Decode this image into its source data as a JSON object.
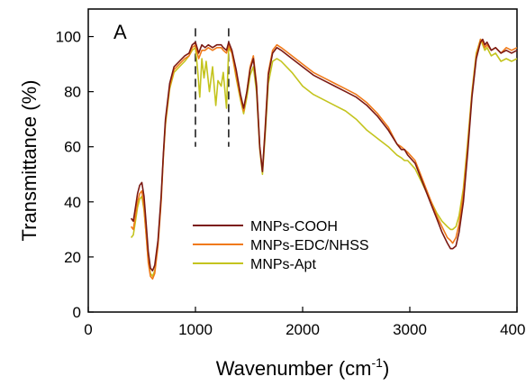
{
  "chart_data": {
    "type": "line",
    "panel_label": "A",
    "xlabel": "Wavenumber (cm",
    "xlabel_sup": "-1",
    "xlabel_end": ")",
    "ylabel": "Transmittance (%)",
    "xlim": [
      0,
      4000
    ],
    "ylim": [
      0,
      110
    ],
    "x_ticks": [
      0,
      1000,
      2000,
      3000,
      4000
    ],
    "y_ticks": [
      0,
      20,
      40,
      60,
      80,
      100
    ],
    "grid": false,
    "legend_position": "lower-left",
    "reference_lines": [
      {
        "x": 1000,
        "y_from": 60,
        "y_to": 103,
        "style": "dashed"
      },
      {
        "x": 1310,
        "y_from": 60,
        "y_to": 103,
        "style": "dashed"
      }
    ],
    "series": [
      {
        "name": "MNPs-COOH",
        "color": "#7b1a14",
        "x": [
          400,
          420,
          440,
          460,
          480,
          500,
          520,
          540,
          560,
          580,
          600,
          620,
          650,
          680,
          700,
          720,
          760,
          800,
          850,
          900,
          940,
          970,
          1000,
          1030,
          1060,
          1090,
          1120,
          1160,
          1200,
          1240,
          1260,
          1290,
          1310,
          1340,
          1380,
          1420,
          1450,
          1480,
          1510,
          1540,
          1570,
          1600,
          1625,
          1650,
          1680,
          1720,
          1760,
          1800,
          1900,
          2000,
          2100,
          2200,
          2300,
          2400,
          2500,
          2600,
          2700,
          2800,
          2880,
          2920,
          2950,
          2980,
          3050,
          3100,
          3150,
          3200,
          3250,
          3300,
          3350,
          3380,
          3400,
          3430,
          3460,
          3500,
          3540,
          3580,
          3620,
          3660,
          3680,
          3700,
          3720,
          3760,
          3800,
          3850,
          3900,
          3950,
          4000
        ],
        "values": [
          34,
          33,
          38,
          43,
          46,
          47,
          42,
          32,
          22,
          16,
          15,
          17,
          26,
          42,
          57,
          70,
          83,
          89,
          91,
          93,
          94,
          97,
          98,
          94,
          97,
          96,
          97,
          96,
          97,
          97,
          96,
          95,
          98,
          95,
          88,
          79,
          74,
          80,
          88,
          92,
          82,
          60,
          51,
          66,
          86,
          94,
          96,
          95,
          92,
          89,
          86,
          84,
          82,
          80,
          78,
          75,
          71,
          66,
          61,
          59,
          59,
          57,
          54,
          49,
          44,
          39,
          34,
          29,
          25,
          23,
          23,
          24,
          29,
          40,
          58,
          78,
          92,
          98,
          99,
          97,
          98,
          95,
          96,
          94,
          95,
          94,
          95
        ]
      },
      {
        "name": "MNPs-EDC/NHSS",
        "color": "#f07a1a",
        "x": [
          400,
          420,
          440,
          460,
          480,
          500,
          520,
          540,
          560,
          580,
          600,
          620,
          650,
          680,
          700,
          720,
          760,
          800,
          850,
          900,
          940,
          970,
          1000,
          1030,
          1060,
          1090,
          1120,
          1160,
          1200,
          1240,
          1260,
          1290,
          1310,
          1340,
          1380,
          1420,
          1450,
          1480,
          1510,
          1540,
          1570,
          1600,
          1625,
          1650,
          1680,
          1720,
          1760,
          1800,
          1900,
          2000,
          2100,
          2200,
          2300,
          2400,
          2500,
          2600,
          2700,
          2800,
          2880,
          2920,
          2950,
          2980,
          3050,
          3100,
          3150,
          3200,
          3250,
          3300,
          3350,
          3380,
          3400,
          3430,
          3460,
          3500,
          3540,
          3580,
          3620,
          3660,
          3680,
          3700,
          3720,
          3760,
          3800,
          3850,
          3900,
          3950,
          4000
        ],
        "values": [
          31,
          30,
          35,
          40,
          43,
          44,
          38,
          28,
          18,
          13,
          12,
          14,
          24,
          40,
          56,
          69,
          82,
          88,
          90,
          92,
          93,
          96,
          97,
          92,
          95,
          95,
          96,
          95,
          96,
          96,
          95,
          94,
          97,
          94,
          86,
          78,
          73,
          80,
          89,
          93,
          83,
          60,
          51,
          67,
          87,
          95,
          97,
          96,
          93,
          90,
          87,
          85,
          83,
          81,
          79,
          76,
          72,
          67,
          61,
          60,
          59,
          58,
          55,
          50,
          45,
          40,
          35,
          31,
          27,
          26,
          25,
          27,
          32,
          43,
          60,
          79,
          93,
          99,
          98,
          96,
          97,
          95,
          96,
          94,
          96,
          95,
          96
        ]
      },
      {
        "name": "MNPs-Apt",
        "color": "#c4c41e",
        "x": [
          400,
          420,
          440,
          460,
          480,
          500,
          520,
          540,
          560,
          580,
          600,
          620,
          650,
          680,
          700,
          720,
          760,
          800,
          850,
          900,
          940,
          970,
          1000,
          1020,
          1040,
          1060,
          1080,
          1100,
          1130,
          1160,
          1190,
          1210,
          1240,
          1260,
          1290,
          1310,
          1340,
          1380,
          1420,
          1450,
          1480,
          1510,
          1540,
          1570,
          1600,
          1625,
          1650,
          1680,
          1720,
          1760,
          1800,
          1900,
          2000,
          2100,
          2200,
          2300,
          2400,
          2500,
          2600,
          2700,
          2800,
          2880,
          2920,
          2950,
          2980,
          3050,
          3100,
          3150,
          3200,
          3250,
          3300,
          3350,
          3380,
          3400,
          3430,
          3460,
          3500,
          3540,
          3580,
          3620,
          3660,
          3680,
          3700,
          3720,
          3760,
          3800,
          3850,
          3900,
          3950,
          4000
        ],
        "values": [
          27,
          28,
          33,
          38,
          41,
          42,
          37,
          28,
          19,
          14,
          13,
          15,
          25,
          41,
          56,
          68,
          81,
          87,
          89,
          91,
          93,
          95,
          96,
          88,
          78,
          92,
          85,
          91,
          80,
          89,
          75,
          84,
          82,
          87,
          74,
          96,
          94,
          85,
          77,
          72,
          78,
          86,
          89,
          80,
          59,
          50,
          64,
          83,
          91,
          92,
          91,
          87,
          82,
          79,
          77,
          75,
          73,
          70,
          66,
          63,
          60,
          57,
          56,
          55,
          55,
          52,
          48,
          44,
          40,
          36,
          33,
          31,
          30,
          30,
          31,
          35,
          45,
          62,
          80,
          94,
          99,
          97,
          95,
          96,
          93,
          94,
          91,
          92,
          91,
          92
        ]
      }
    ]
  }
}
